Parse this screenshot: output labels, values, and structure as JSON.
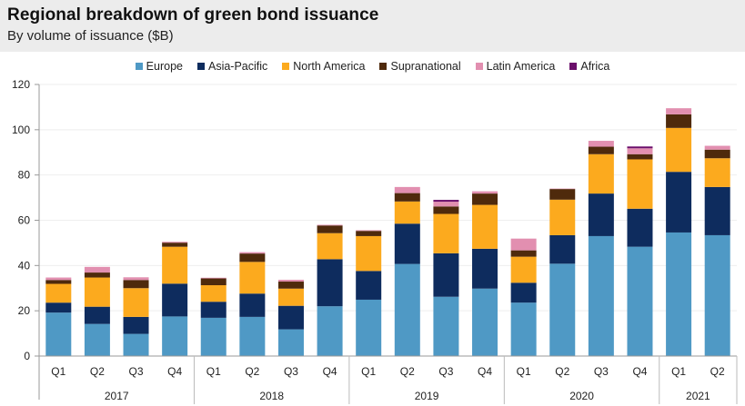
{
  "header": {
    "title": "Regional breakdown of green bond issuance",
    "subtitle": "By volume of issuance ($B)"
  },
  "chart_data": {
    "type": "bar",
    "stacked": true,
    "title": "Regional breakdown of green bond issuance",
    "subtitle": "By volume of issuance ($B)",
    "xlabel": "",
    "ylabel": "",
    "ylim": [
      0,
      120
    ],
    "yticks": [
      0,
      20,
      40,
      60,
      80,
      100,
      120
    ],
    "grid": true,
    "legend_position": "top-center",
    "categories": [
      "Q1",
      "Q2",
      "Q3",
      "Q4",
      "Q1",
      "Q2",
      "Q3",
      "Q4",
      "Q1",
      "Q2",
      "Q3",
      "Q4",
      "Q1",
      "Q2",
      "Q3",
      "Q4",
      "Q1",
      "Q2"
    ],
    "groups": [
      {
        "label": "2017",
        "count": 4
      },
      {
        "label": "2018",
        "count": 4
      },
      {
        "label": "2019",
        "count": 4
      },
      {
        "label": "2020",
        "count": 4
      },
      {
        "label": "2021",
        "count": 2
      }
    ],
    "series": [
      {
        "name": "Europe",
        "color": "#4f99c5",
        "values": [
          19.2,
          14.2,
          9.8,
          17.5,
          16.9,
          17.3,
          11.8,
          22.0,
          24.9,
          40.7,
          26.2,
          29.8,
          23.6,
          40.8,
          53.0,
          48.3,
          54.6,
          53.4
        ]
      },
      {
        "name": "Asia-Pacific",
        "color": "#0e2c5e",
        "values": [
          4.4,
          7.6,
          7.5,
          14.5,
          7.1,
          10.3,
          10.4,
          20.8,
          12.7,
          17.8,
          19.2,
          17.6,
          8.8,
          12.6,
          18.8,
          16.8,
          26.8,
          21.3
        ]
      },
      {
        "name": "North America",
        "color": "#fcaa1e",
        "values": [
          8.3,
          12.9,
          12.7,
          16.3,
          7.3,
          14.0,
          7.6,
          11.5,
          15.4,
          9.8,
          17.4,
          19.4,
          11.5,
          15.7,
          17.4,
          21.8,
          19.4,
          12.7
        ]
      },
      {
        "name": "Supranational",
        "color": "#4f2a0c",
        "values": [
          1.7,
          2.2,
          3.6,
          1.8,
          3.0,
          3.7,
          3.1,
          3.4,
          2.3,
          3.7,
          3.3,
          5.0,
          2.8,
          4.7,
          3.3,
          2.3,
          6.0,
          3.8
        ]
      },
      {
        "name": "Latin America",
        "color": "#e28fb0",
        "values": [
          1.1,
          2.5,
          1.2,
          0.4,
          0.3,
          0.6,
          0.8,
          0.3,
          0.3,
          2.7,
          2.1,
          1.0,
          5.2,
          0.2,
          2.6,
          2.6,
          2.7,
          1.7
        ]
      },
      {
        "name": "Africa",
        "color": "#6b0f6b",
        "values": [
          0,
          0,
          0,
          0,
          0,
          0,
          0,
          0,
          0,
          0,
          0.8,
          0,
          0,
          0,
          0,
          0.8,
          0,
          0
        ]
      }
    ]
  }
}
